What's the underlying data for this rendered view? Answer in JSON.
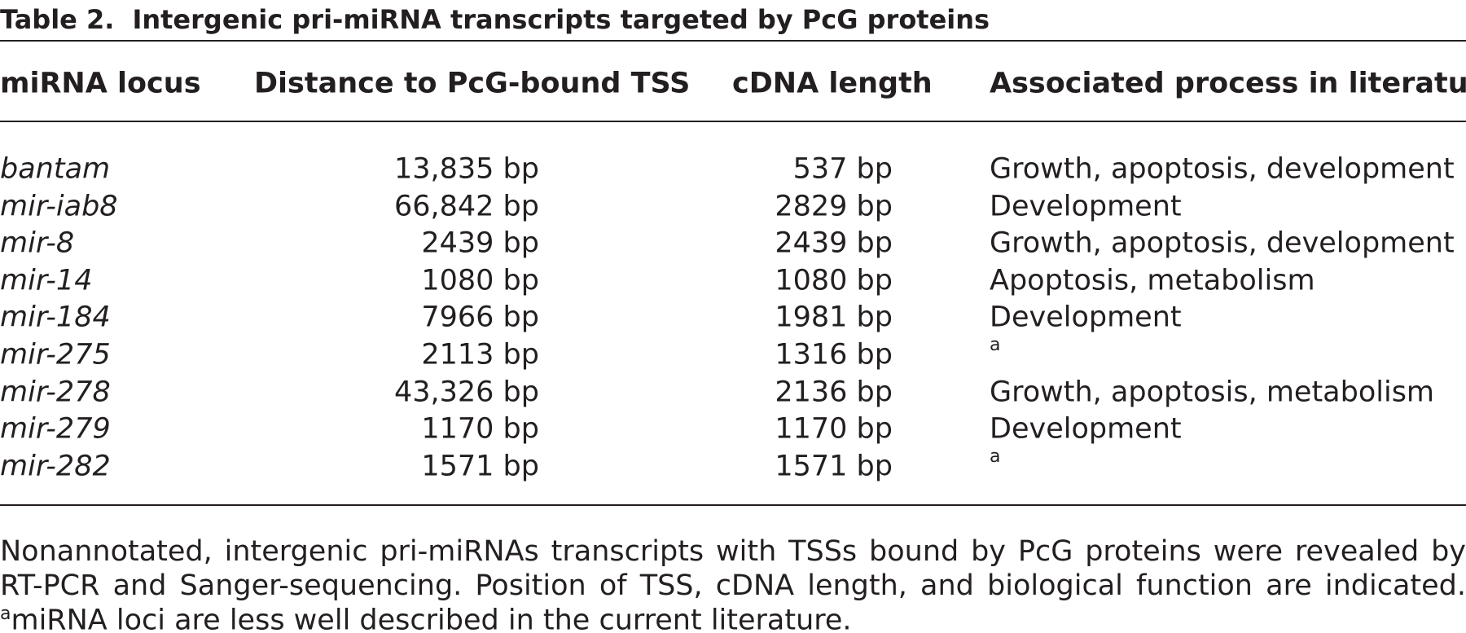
{
  "title": {
    "label": "Table 2.",
    "text": "Intergenic pri-miRNA transcripts targeted by PcG proteins"
  },
  "table": {
    "headers": [
      "miRNA locus",
      "Distance to PcG-bound TSS",
      "cDNA length",
      "Associated process in literature"
    ],
    "rows": [
      [
        "bantam",
        "13,835 bp",
        "537 bp",
        "Growth, apoptosis, development"
      ],
      [
        "mir-iab8",
        "66,842 bp",
        "2829 bp",
        "Development"
      ],
      [
        "mir-8",
        "2439 bp",
        "2439 bp",
        "Growth, apoptosis, development"
      ],
      [
        "mir-14",
        "1080 bp",
        "1080 bp",
        "Apoptosis, metabolism"
      ],
      [
        "mir-184",
        "7966 bp",
        "1981 bp",
        "Development"
      ],
      [
        "mir-275",
        "2113 bp",
        "1316 bp",
        "a"
      ],
      [
        "mir-278",
        "43,326 bp",
        "2136 bp",
        "Growth, apoptosis, metabolism"
      ],
      [
        "mir-279",
        "1170 bp",
        "1170 bp",
        "Development"
      ],
      [
        "mir-282",
        "1571 bp",
        "1571 bp",
        "a"
      ]
    ]
  },
  "footnote": {
    "lines": [
      "Nonannotated, intergenic pri-miRNAs transcripts with TSSs bound by PcG proteins were revealed by",
      "RT-PCR and Sanger-sequencing. Position of TSS, cDNA length, and biological function are indicated."
    ],
    "marker": "a",
    "note": "miRNA loci are less well described in the current literature."
  }
}
